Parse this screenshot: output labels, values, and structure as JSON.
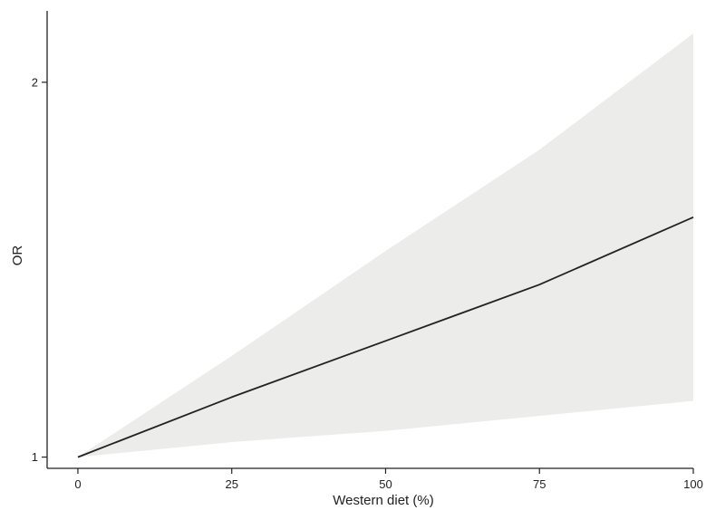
{
  "chart_data": {
    "type": "line",
    "title": "",
    "xlabel": "Western diet (%)",
    "ylabel": "OR",
    "xlim": [
      -5,
      100
    ],
    "ylim": [
      0.97,
      2.13
    ],
    "x_ticks": [
      0,
      25,
      50,
      75,
      100
    ],
    "y_ticks": [
      1,
      2
    ],
    "x_tick_labels": [
      "0",
      "25",
      "50",
      "75",
      "100"
    ],
    "y_tick_labels": [
      "1",
      "2"
    ],
    "grid": false,
    "legend": "none",
    "series": [
      {
        "x": [
          0,
          25,
          50,
          75,
          100
        ],
        "y": [
          1.0,
          1.16,
          1.31,
          1.46,
          1.64
        ],
        "ci_lower": [
          1.0,
          1.04,
          1.07,
          1.11,
          1.15
        ],
        "ci_upper": [
          1.0,
          1.27,
          1.55,
          1.82,
          2.13
        ]
      }
    ],
    "colors": {
      "line": "#222222",
      "band": "#ececea",
      "axis": "#222222"
    }
  }
}
